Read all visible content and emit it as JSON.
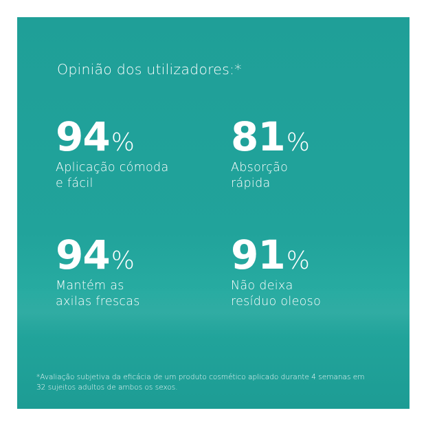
{
  "heading": "Opinião dos utilizadores:*",
  "stats": [
    {
      "value": "94",
      "unit": "%",
      "label_lines": [
        "Aplicação cómoda",
        "e fácil"
      ]
    },
    {
      "value": "81",
      "unit": "%",
      "label_lines": [
        "Absorção",
        "rápida"
      ]
    },
    {
      "value": "94",
      "unit": "%",
      "label_lines": [
        "Mantém as",
        "axilas frescas"
      ]
    },
    {
      "value": "91",
      "unit": "%",
      "label_lines": [
        "Não deixa",
        "resíduo oleoso"
      ]
    }
  ],
  "footnote_lines": [
    "*Avaliação subjetiva da eficácia de um produto cosmético aplicado durante 4 semanas em",
    "32 sujeitos adultos de ambos os sexos."
  ],
  "colors": {
    "background": "#21a39b",
    "text": "#ffffff"
  }
}
